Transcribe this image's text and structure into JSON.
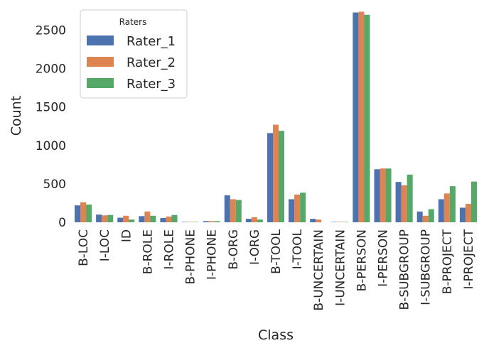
{
  "chart_data": {
    "type": "bar",
    "xlabel": "Class",
    "ylabel": "Count",
    "ylim": [
      0,
      2800
    ],
    "yticks": [
      0,
      500,
      1000,
      1500,
      2000,
      2500
    ],
    "grid": false,
    "categories": [
      "B-LOC",
      "I-LOC",
      "ID",
      "B-ROLE",
      "I-ROLE",
      "B-PHONE",
      "I-PHONE",
      "B-ORG",
      "I-ORG",
      "B-TOOL",
      "I-TOOL",
      "B-UNCERTAIN",
      "I-UNCERTAIN",
      "B-PERSON",
      "I-PERSON",
      "B-SUBGROUP",
      "I-SUBGROUP",
      "B-PROJECT",
      "I-PROJECT"
    ],
    "legend": {
      "title": "Raters",
      "placement": "upper-left"
    },
    "series": [
      {
        "name": "Rater_1",
        "color": "#4c72b0",
        "values": [
          220,
          100,
          60,
          80,
          55,
          5,
          15,
          350,
          45,
          1160,
          300,
          45,
          5,
          2730,
          690,
          525,
          140,
          300,
          190
        ]
      },
      {
        "name": "Rater_2",
        "color": "#dd8452",
        "values": [
          260,
          90,
          85,
          140,
          75,
          5,
          15,
          300,
          65,
          1270,
          360,
          35,
          5,
          2740,
          700,
          480,
          85,
          375,
          240
        ]
      },
      {
        "name": "Rater_3",
        "color": "#55a868",
        "values": [
          230,
          95,
          35,
          85,
          95,
          5,
          15,
          290,
          35,
          1190,
          385,
          0,
          5,
          2700,
          700,
          620,
          170,
          470,
          530
        ]
      }
    ]
  }
}
